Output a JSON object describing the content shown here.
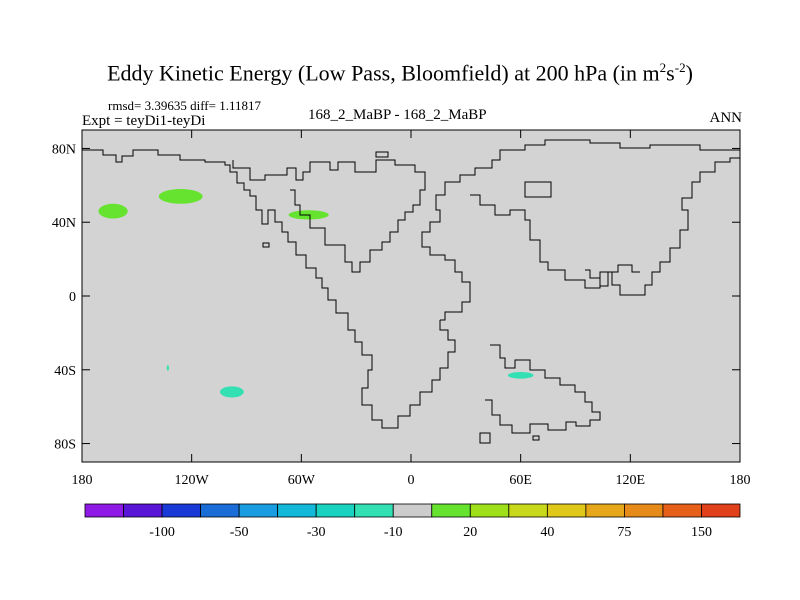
{
  "title": {
    "main": "Eddy Kinetic Energy (Low Pass, Bloomfield) at 200 hPa (in m",
    "sup1": "2",
    "mid": "s",
    "sup2": "-2",
    "tail": ")"
  },
  "stats": "rmsd= 3.39635 diff= 1.11817",
  "expt": "Expt = teyDi1-teyDi",
  "subtitle": "168_2_MaBP - 168_2_MaBP",
  "season": "ANN",
  "colors": {
    "background": "#d3d3d3",
    "positive": "#66e32f",
    "negative": "#33e0b4",
    "coast": "#000000"
  },
  "chart_data": {
    "type": "map",
    "variable": "Eddy Kinetic Energy difference",
    "lon_range": [
      -180,
      180
    ],
    "lat_range": [
      -90,
      90
    ],
    "x_ticks": [
      {
        "value": -180,
        "label": "180"
      },
      {
        "value": -120,
        "label": "120W"
      },
      {
        "value": -60,
        "label": "60W"
      },
      {
        "value": 0,
        "label": "0"
      },
      {
        "value": 60,
        "label": "60E"
      },
      {
        "value": 120,
        "label": "120E"
      },
      {
        "value": 180,
        "label": "180"
      }
    ],
    "y_ticks": [
      {
        "value": 80,
        "label": "80N"
      },
      {
        "value": 40,
        "label": "40N"
      },
      {
        "value": 0,
        "label": "0"
      },
      {
        "value": -40,
        "label": "40S"
      },
      {
        "value": -80,
        "label": "80S"
      }
    ],
    "anomalies": [
      {
        "name": "north-pacific-west",
        "lon": -163,
        "lat": 46,
        "dlon": 8,
        "dlat": 4,
        "sign": "positive"
      },
      {
        "name": "north-pacific-central",
        "lon": -126,
        "lat": 54,
        "dlon": 12,
        "dlat": 4,
        "sign": "positive"
      },
      {
        "name": "north-atlantic",
        "lon": -56,
        "lat": 44,
        "dlon": 11,
        "dlat": 2.5,
        "sign": "positive"
      },
      {
        "name": "south-pacific",
        "lon": -98,
        "lat": -52,
        "dlon": 6.5,
        "dlat": 3,
        "sign": "negative"
      },
      {
        "name": "south-pacific-dot",
        "lon": -133,
        "lat": -39,
        "dlon": 0.6,
        "dlat": 1.5,
        "sign": "negative"
      },
      {
        "name": "south-indian",
        "lon": 60,
        "lat": -43,
        "dlon": 7,
        "dlat": 1.8,
        "sign": "negative"
      }
    ],
    "colorbar": {
      "colors": [
        "#8f1ae6",
        "#5a16d6",
        "#1a3ad8",
        "#1a6cd6",
        "#1a9ce0",
        "#14b8d8",
        "#1ad2c0",
        "#33e0b4",
        "#cccccc",
        "#66e32f",
        "#9ee01a",
        "#c8d81a",
        "#e0c81a",
        "#e6a81a",
        "#e68a1a",
        "#e6601a",
        "#e0401a"
      ],
      "labels": [
        "-100",
        "-50",
        "-30",
        "-10",
        "20",
        "40",
        "75",
        "150"
      ]
    }
  }
}
